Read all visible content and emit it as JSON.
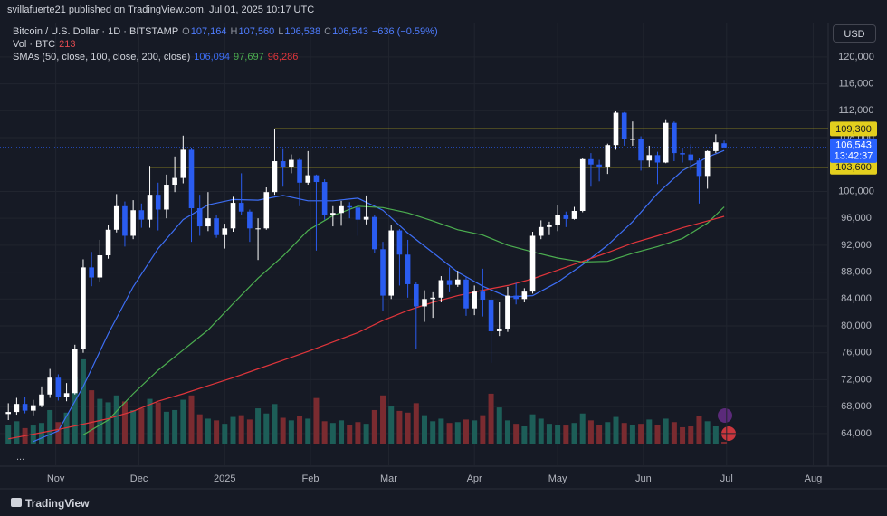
{
  "chart_data": {
    "type": "candlestick",
    "published": "svillafuerte21 published on TradingView.com, Jul 01, 2025 10:17 UTC",
    "title": "Bitcoin / U.S. Dollar · 1D · BITSTAMP",
    "ohlc_header": {
      "items": [
        {
          "key": "O",
          "value": "107,164"
        },
        {
          "key": "H",
          "value": "107,560"
        },
        {
          "key": "L",
          "value": "106,538"
        },
        {
          "key": "C",
          "value": "106,543"
        }
      ],
      "change": "−636 (−0.59%)"
    },
    "currency": "USD",
    "brand": "TradingView",
    "more": "...",
    "up_color": "#ffffff",
    "down_color": "#2a5cf0",
    "open": [
      66900,
      67200,
      68400,
      67400,
      68200,
      69800,
      72300,
      69400,
      70000,
      76500,
      88700,
      87200,
      90500,
      94300,
      97800,
      93400,
      97200,
      95800,
      99500,
      97300,
      101000,
      102000,
      106200,
      97500,
      94800,
      96000,
      93500,
      94500,
      98300,
      97000,
      94500,
      94500,
      99900,
      104500,
      103600,
      104700,
      101300,
      102400,
      101400,
      96500,
      96800,
      97800,
      97600,
      95800,
      96200,
      91400,
      84500,
      94200,
      90600,
      86200,
      82900,
      84000,
      84200,
      86800,
      86100,
      86900,
      82600,
      85100,
      83900,
      79200,
      79600,
      84500,
      84000,
      85100,
      93400,
      94700,
      95000,
      96500,
      95900,
      97100,
      104800,
      104000,
      103700,
      106900,
      111700,
      107800,
      107800,
      104600,
      105400,
      104300,
      110200,
      105700,
      105500,
      104600,
      102300,
      106000,
      107164
    ],
    "high": [
      68500,
      69300,
      69500,
      69000,
      71000,
      73600,
      72800,
      71500,
      77200,
      89900,
      91000,
      92800,
      95000,
      99600,
      98500,
      98700,
      98200,
      103800,
      101300,
      102500,
      105200,
      108300,
      106400,
      99500,
      99900,
      96500,
      95200,
      99200,
      102700,
      97300,
      96000,
      100600,
      109300,
      106300,
      105500,
      105000,
      106000,
      102500,
      101800,
      97800,
      98600,
      98400,
      97900,
      99400,
      96500,
      92500,
      95000,
      94400,
      92800,
      86500,
      85300,
      85000,
      87400,
      88700,
      88200,
      87300,
      86000,
      88500,
      84700,
      83500,
      85800,
      86400,
      85600,
      94000,
      95700,
      95500,
      97900,
      97000,
      97700,
      104900,
      105700,
      104700,
      107100,
      111900,
      111800,
      110400,
      108200,
      106800,
      105900,
      110600,
      110400,
      106500,
      107000,
      105000,
      106100,
      108500,
      107560
    ],
    "low": [
      66000,
      66800,
      67000,
      66700,
      67900,
      69300,
      68900,
      68800,
      69800,
      76000,
      85900,
      86600,
      90000,
      93900,
      91800,
      92900,
      94600,
      94600,
      94200,
      96000,
      99900,
      101200,
      92500,
      93400,
      94100,
      93100,
      91500,
      94000,
      96500,
      92500,
      89800,
      94300,
      99500,
      100700,
      102700,
      97800,
      101000,
      91200,
      95800,
      94800,
      94900,
      96000,
      93400,
      95100,
      90800,
      82200,
      84000,
      86000,
      84200,
      76600,
      80600,
      81200,
      83500,
      85000,
      85800,
      81500,
      81600,
      81400,
      74500,
      78500,
      79100,
      83200,
      83500,
      84800,
      92900,
      93500,
      94100,
      94700,
      95800,
      96900,
      100700,
      101500,
      102600,
      106200,
      106800,
      106800,
      103100,
      103700,
      101100,
      104200,
      104500,
      104300,
      103200,
      98200,
      100400,
      105700,
      106538
    ],
    "close": [
      67200,
      68400,
      67400,
      68200,
      69800,
      72300,
      69400,
      70000,
      76500,
      88700,
      87200,
      90500,
      94300,
      97800,
      93400,
      97200,
      95800,
      99500,
      97300,
      101000,
      102000,
      106200,
      97500,
      94800,
      96000,
      93500,
      94500,
      98300,
      97000,
      94500,
      94500,
      99900,
      104500,
      103600,
      104700,
      101300,
      102400,
      101400,
      96500,
      96800,
      97800,
      97600,
      95800,
      96200,
      91400,
      84500,
      94200,
      90600,
      86200,
      82900,
      84000,
      84200,
      86800,
      86100,
      86900,
      82600,
      85100,
      83900,
      79200,
      79600,
      84500,
      84000,
      85100,
      93400,
      94700,
      95000,
      96500,
      95900,
      97100,
      104800,
      104000,
      103700,
      106900,
      111700,
      107800,
      107800,
      104600,
      105400,
      104300,
      110200,
      105700,
      105500,
      104600,
      102300,
      106000,
      107300,
      106543
    ],
    "volume": {
      "label": "Vol · BTC",
      "last": "213",
      "up_color": "#1d5e58",
      "down_color": "#7a2b30",
      "values": [
        2200,
        2600,
        1800,
        2100,
        2400,
        3900,
        2500,
        3600,
        7800,
        9800,
        6200,
        5200,
        4800,
        5600,
        4900,
        3900,
        4100,
        5200,
        4800,
        3700,
        3900,
        5100,
        5600,
        3400,
        2900,
        2700,
        2300,
        3100,
        3300,
        2800,
        4100,
        3500,
        4600,
        3000,
        2700,
        3200,
        2900,
        5300,
        2600,
        2400,
        2700,
        2200,
        2500,
        2300,
        3900,
        5600,
        4400,
        3800,
        3600,
        4700,
        3300,
        2600,
        2900,
        2400,
        2500,
        2800,
        2700,
        3300,
        5800,
        4200,
        2700,
        2300,
        2000,
        3400,
        2900,
        2300,
        2200,
        2100,
        2400,
        3500,
        2700,
        2200,
        2500,
        3100,
        2400,
        2200,
        2300,
        2800,
        2200,
        2900,
        2500,
        1900,
        2000,
        3200,
        2600,
        2000,
        213
      ]
    },
    "sma": {
      "label": "SMAs (50, close, 100, close, 200, close)",
      "x": [
        0,
        3,
        6,
        9,
        12,
        15,
        18,
        21,
        24,
        27,
        30,
        33,
        36,
        39,
        42,
        45,
        48,
        51,
        54,
        57,
        60,
        63,
        66,
        69,
        72,
        75,
        78,
        81,
        84,
        86
      ],
      "series": [
        {
          "color": "#3d6ef5",
          "value_label": "106,094",
          "values": [
            null,
            62800,
            64400,
            71000,
            78800,
            85800,
            91500,
            95800,
            98000,
            98800,
            98700,
            99400,
            98600,
            98600,
            99000,
            97200,
            93800,
            90900,
            88000,
            85900,
            84300,
            84500,
            86500,
            89100,
            92000,
            95500,
            99700,
            103100,
            105100,
            106094
          ]
        },
        {
          "color": "#4caf50",
          "value_label": "97,697",
          "values": [
            null,
            null,
            null,
            63800,
            66000,
            69900,
            73400,
            76400,
            79400,
            83300,
            87100,
            90400,
            94200,
            96400,
            97800,
            97600,
            96800,
            95600,
            94300,
            93500,
            92000,
            91000,
            90100,
            89500,
            89600,
            90800,
            91800,
            93000,
            95300,
            97697
          ]
        },
        {
          "color": "#e0353b",
          "value_label": "96,286",
          "values": [
            63200,
            63900,
            64600,
            65400,
            66200,
            67300,
            68800,
            69900,
            71100,
            72300,
            73600,
            74900,
            76200,
            77600,
            79000,
            80800,
            82300,
            83500,
            84500,
            85300,
            86000,
            87000,
            88300,
            89600,
            90900,
            92300,
            93400,
            94600,
            95600,
            96286
          ]
        }
      ]
    },
    "levels": [
      {
        "value": 109300,
        "label": "109,300",
        "from": 32
      },
      {
        "value": 103600,
        "label": "103,600",
        "from": 17
      }
    ],
    "level_color": "#e3cf1e",
    "last_price": {
      "label": "106,543",
      "countdown": "13:42:37",
      "color": "#2962ff"
    },
    "xlim": [
      -1,
      98.5
    ],
    "xticks": [
      {
        "value": 5.7,
        "label": "Nov"
      },
      {
        "value": 15.7,
        "label": "Dec"
      },
      {
        "value": 26,
        "label": "2025"
      },
      {
        "value": 36.3,
        "label": "Feb"
      },
      {
        "value": 45.7,
        "label": "Mar"
      },
      {
        "value": 56,
        "label": "Apr"
      },
      {
        "value": 66,
        "label": "May"
      },
      {
        "value": 76.3,
        "label": "Jun"
      },
      {
        "value": 86.3,
        "label": "Jul"
      },
      {
        "value": 96.7,
        "label": "Aug"
      }
    ],
    "ylim": [
      62500,
      125100
    ],
    "yticks": [
      {
        "value": 64000,
        "label": "64,000"
      },
      {
        "value": 68000,
        "label": "68,000"
      },
      {
        "value": 72000,
        "label": "72,000"
      },
      {
        "value": 76000,
        "label": "76,000"
      },
      {
        "value": 80000,
        "label": "80,000"
      },
      {
        "value": 84000,
        "label": "84,000"
      },
      {
        "value": 88000,
        "label": "88,000"
      },
      {
        "value": 92000,
        "label": "92,000"
      },
      {
        "value": 96000,
        "label": "96,000"
      },
      {
        "value": 100000,
        "label": "100,000"
      },
      {
        "value": 108000,
        "label": "108,000"
      },
      {
        "value": 112000,
        "label": "112,000"
      },
      {
        "value": 116000,
        "label": "116,000"
      },
      {
        "value": 120000,
        "label": "120,000"
      }
    ],
    "grid": true
  }
}
